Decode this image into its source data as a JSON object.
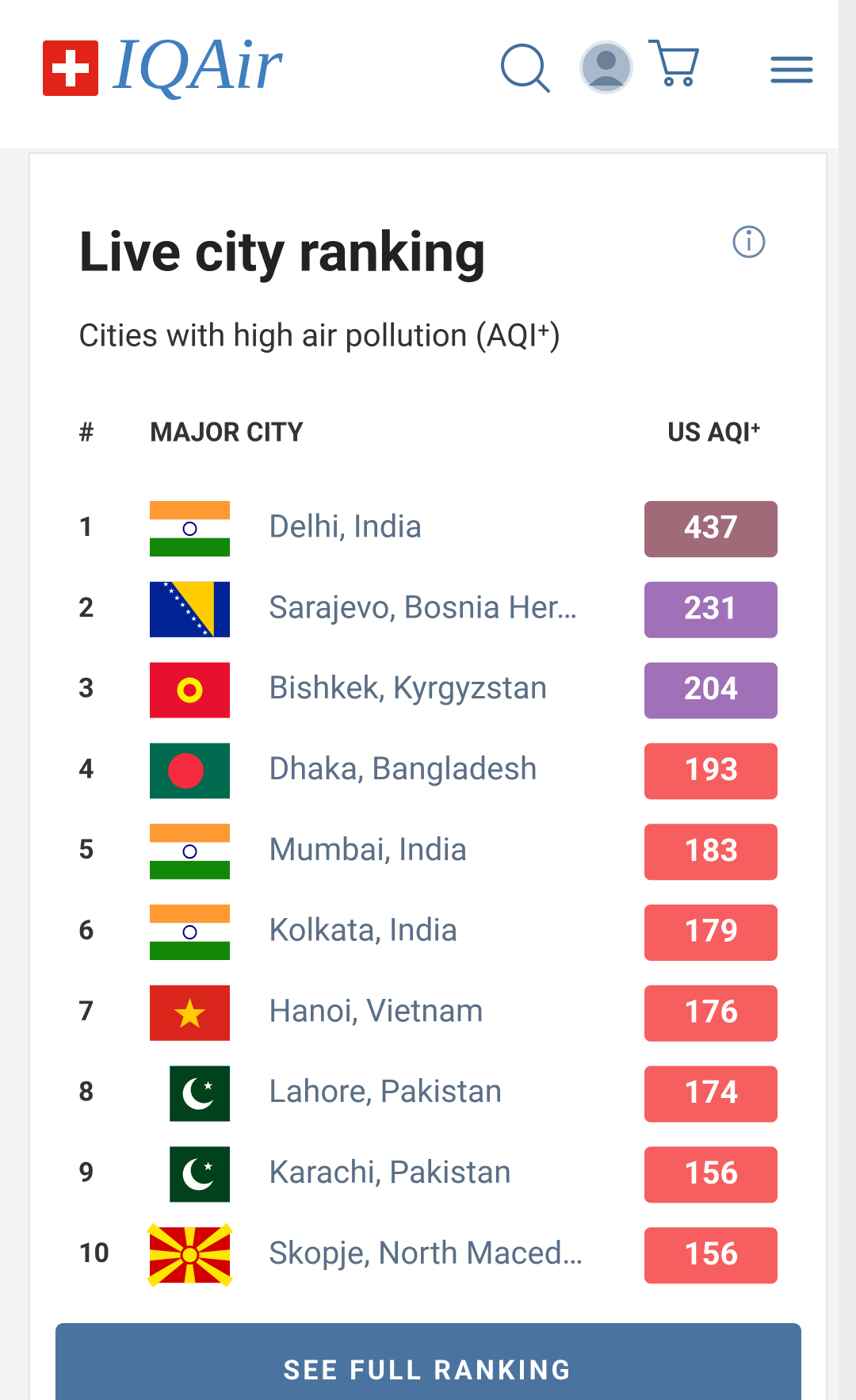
{
  "header": {
    "logo": "IQAir"
  },
  "card": {
    "title": "Live city ranking",
    "subtitle": "Cities with high air pollution (AQI⁺)",
    "columns": [
      "#",
      "MAJOR CITY",
      "US AQI⁺"
    ],
    "rows": [
      {
        "rank": 1,
        "city": "Delhi, India",
        "aqi": 437,
        "color": "#a06a79"
      },
      {
        "rank": 2,
        "city": "Sarajevo, Bosnia Her…",
        "aqi": 231,
        "color": "#a070b8"
      },
      {
        "rank": 3,
        "city": "Bishkek, Kyrgyzstan",
        "aqi": 204,
        "color": "#a070b8"
      },
      {
        "rank": 4,
        "city": "Dhaka, Bangladesh",
        "aqi": 193,
        "color": "#f65e5f"
      },
      {
        "rank": 5,
        "city": "Mumbai, India",
        "aqi": 183,
        "color": "#f65e5f"
      },
      {
        "rank": 6,
        "city": "Kolkata, India",
        "aqi": 179,
        "color": "#f65e5f"
      },
      {
        "rank": 7,
        "city": "Hanoi, Vietnam",
        "aqi": 176,
        "color": "#f65e5f"
      },
      {
        "rank": 8,
        "city": "Lahore, Pakistan",
        "aqi": 174,
        "color": "#f65e5f"
      },
      {
        "rank": 9,
        "city": "Karachi, Pakistan",
        "aqi": 156,
        "color": "#f65e5f"
      },
      {
        "rank": 10,
        "city": "Skopje, North Maced…",
        "aqi": 156,
        "color": "#f65e5f"
      }
    ],
    "button": "SEE FULL RANKING"
  }
}
